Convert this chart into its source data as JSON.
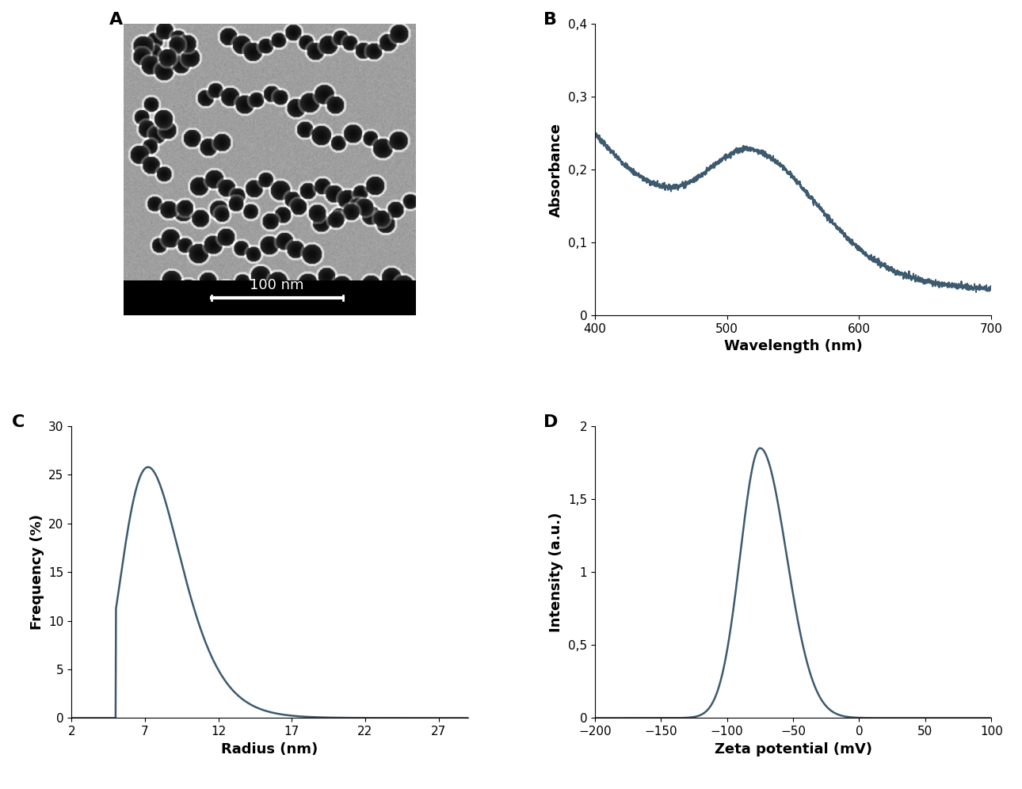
{
  "panel_labels": [
    "A",
    "B",
    "C",
    "D"
  ],
  "line_color": "#3d5a6e",
  "line_width": 1.8,
  "background_color": "#ffffff",
  "panel_label_fontsize": 16,
  "panel_label_fontweight": "bold",
  "axis_label_fontsize": 13,
  "axis_label_fontweight": "bold",
  "tick_label_fontsize": 11,
  "panel_B": {
    "xlabel": "Wavelength (nm)",
    "ylabel": "Absorbance",
    "xlim": [
      400,
      700
    ],
    "ylim": [
      0,
      0.4
    ],
    "xticks": [
      400,
      500,
      600,
      700
    ],
    "yticks": [
      0,
      0.1,
      0.2,
      0.3,
      0.4
    ],
    "ytick_labels": [
      "0",
      "0,1",
      "0,2",
      "0,3",
      "0,4"
    ]
  },
  "panel_C": {
    "xlabel": "Radius (nm)",
    "ylabel": "Frequency (%)",
    "xlim": [
      2,
      29
    ],
    "ylim": [
      0,
      30
    ],
    "xticks": [
      2,
      7,
      12,
      17,
      22,
      27
    ],
    "yticks": [
      0,
      5,
      10,
      15,
      20,
      25,
      30
    ]
  },
  "panel_D": {
    "xlabel": "Zeta potential (mV)",
    "ylabel": "Intensity (a.u.)",
    "xlim": [
      -200,
      100
    ],
    "ylim": [
      0,
      2
    ],
    "xticks": [
      -200,
      -150,
      -100,
      -50,
      0,
      50,
      100
    ],
    "yticks": [
      0,
      0.5,
      1,
      1.5,
      2
    ],
    "ytick_labels": [
      "0",
      "0,5",
      "1",
      "1,5",
      "2"
    ]
  }
}
